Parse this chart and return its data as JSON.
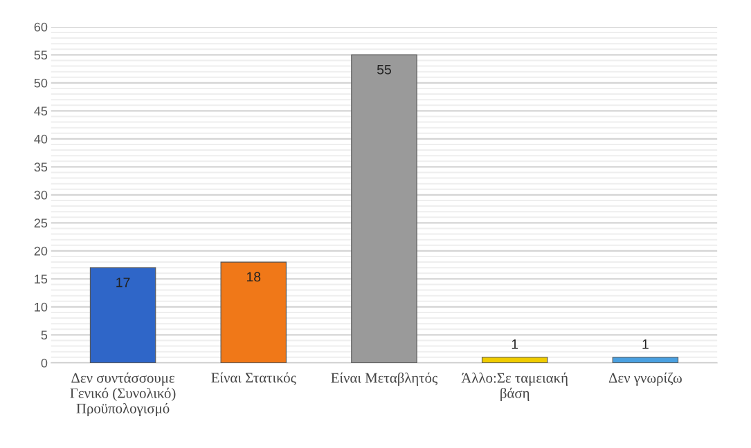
{
  "chart_data": {
    "type": "bar",
    "categories": [
      "Δεν συντάσσουμε Γενικό (Συνολικό) Προϋπολογισμό",
      "Είναι Στατικός",
      "Είναι Μεταβλητός",
      "Άλλο:Σε ταμειακή βάση",
      "Δεν γνωρίζω"
    ],
    "values": [
      17,
      18,
      55,
      1,
      1
    ],
    "colors": [
      "#2f66c8",
      "#f07818",
      "#9a9a9a",
      "#f0cc00",
      "#4aa0e0"
    ],
    "ylim": [
      0,
      60
    ],
    "yticks": [
      0,
      5,
      10,
      15,
      20,
      25,
      30,
      35,
      40,
      45,
      50,
      55,
      60
    ],
    "grid": "y",
    "data_labels": true
  }
}
